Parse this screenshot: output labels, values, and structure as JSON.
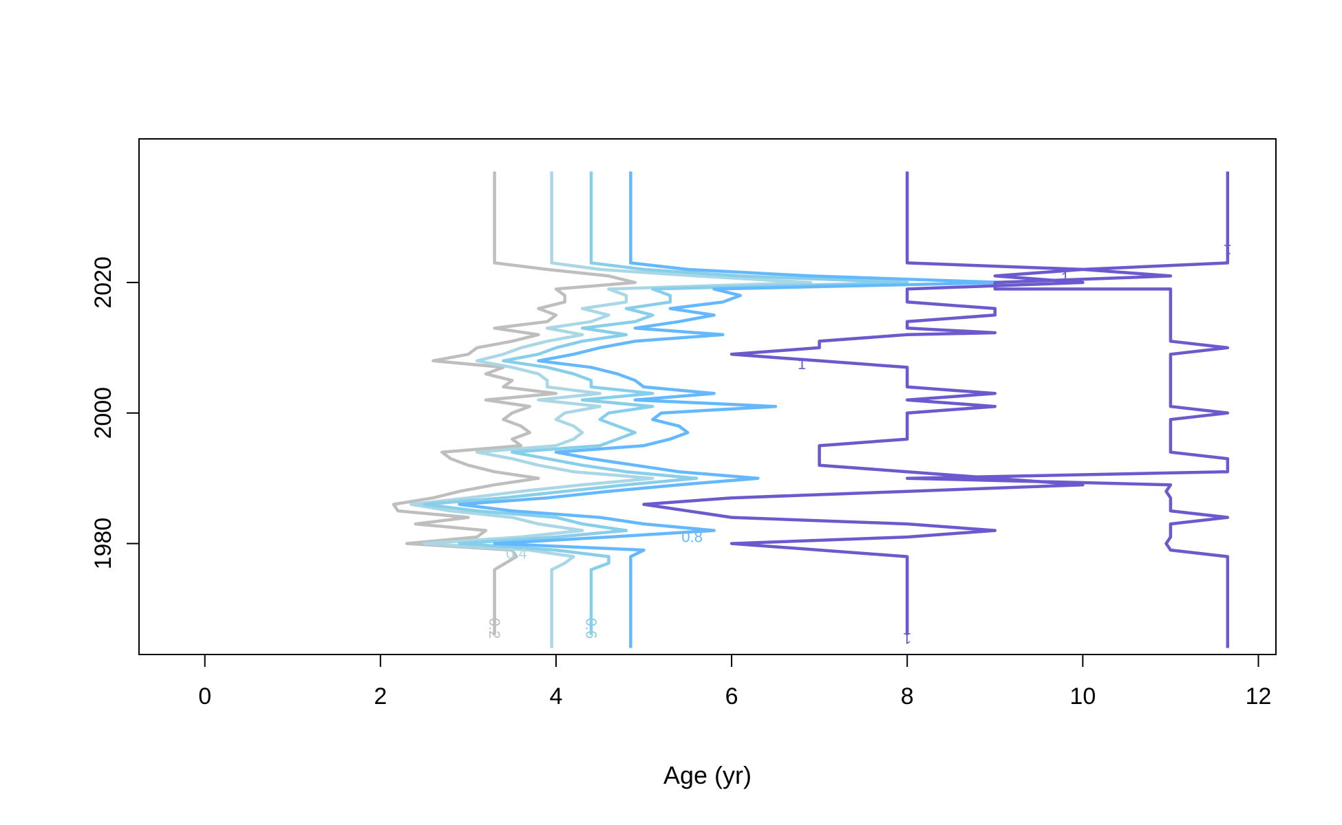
{
  "chart_data": {
    "type": "line",
    "subtype": "contour",
    "title": "",
    "xlabel": "Age (yr)",
    "ylabel": "",
    "xlim": [
      -0.75,
      12.2
    ],
    "ylim": [
      1963,
      2042
    ],
    "x_ticks": [
      0,
      2,
      4,
      6,
      8,
      10,
      12
    ],
    "x_tick_labels": [
      "0",
      "2",
      "4",
      "6",
      "8",
      "10",
      "12"
    ],
    "y_ticks": [
      1980,
      2000,
      2020
    ],
    "y_tick_labels": [
      "1980",
      "2000",
      "2020"
    ],
    "grid": false,
    "legend": "none",
    "series": [
      {
        "label": "0.2",
        "label_x": 3.3,
        "label_y": 1967,
        "label_rot": 90,
        "color": "#bebebe",
        "points": [
          [
            3.3,
            1966
          ],
          [
            3.3,
            1976
          ],
          [
            3.55,
            1978
          ],
          [
            3.5,
            1979
          ],
          [
            2.3,
            1980
          ],
          [
            3.1,
            1981
          ],
          [
            3.2,
            1982
          ],
          [
            2.4,
            1983
          ],
          [
            3.0,
            1984
          ],
          [
            2.2,
            1985
          ],
          [
            2.15,
            1986
          ],
          [
            2.6,
            1987
          ],
          [
            2.9,
            1988
          ],
          [
            3.3,
            1989
          ],
          [
            3.8,
            1990
          ],
          [
            3.3,
            1991
          ],
          [
            3.0,
            1992
          ],
          [
            2.8,
            1993
          ],
          [
            2.7,
            1994
          ],
          [
            3.6,
            1995
          ],
          [
            3.5,
            1996
          ],
          [
            3.7,
            1997
          ],
          [
            3.6,
            1998
          ],
          [
            3.4,
            1999
          ],
          [
            3.5,
            2000
          ],
          [
            3.7,
            2001
          ],
          [
            3.2,
            2002
          ],
          [
            4.0,
            2003
          ],
          [
            3.4,
            2004
          ],
          [
            3.5,
            2005
          ],
          [
            3.2,
            2006
          ],
          [
            3.4,
            2007
          ],
          [
            2.6,
            2008
          ],
          [
            3.0,
            2009
          ],
          [
            3.1,
            2010
          ],
          [
            3.5,
            2011
          ],
          [
            3.8,
            2012
          ],
          [
            3.3,
            2013
          ],
          [
            3.9,
            2014
          ],
          [
            4.0,
            2015
          ],
          [
            3.8,
            2016
          ],
          [
            4.1,
            2017
          ],
          [
            4.1,
            2018
          ],
          [
            4.0,
            2019
          ],
          [
            4.9,
            2020
          ],
          [
            4.6,
            2021
          ],
          [
            3.9,
            2022
          ],
          [
            3.3,
            2023
          ],
          [
            3.3,
            2037
          ]
        ]
      },
      {
        "label": "0.4",
        "label_x": 3.55,
        "label_y": 1978.5,
        "label_rot": 0,
        "color": "#a9d7e6",
        "points": [
          [
            3.95,
            1964
          ],
          [
            3.95,
            1976
          ],
          [
            4.1,
            1977
          ],
          [
            4.2,
            1978
          ],
          [
            3.7,
            1979
          ],
          [
            2.5,
            1980
          ],
          [
            3.6,
            1981
          ],
          [
            4.3,
            1982
          ],
          [
            3.8,
            1983
          ],
          [
            3.5,
            1984
          ],
          [
            2.8,
            1985
          ],
          [
            2.35,
            1986
          ],
          [
            3.0,
            1987
          ],
          [
            3.6,
            1988
          ],
          [
            4.3,
            1989
          ],
          [
            5.1,
            1990
          ],
          [
            4.2,
            1991
          ],
          [
            3.8,
            1992
          ],
          [
            3.5,
            1993
          ],
          [
            3.1,
            1994
          ],
          [
            4.0,
            1995
          ],
          [
            4.2,
            1996
          ],
          [
            4.3,
            1997
          ],
          [
            4.2,
            1998
          ],
          [
            4.0,
            1999
          ],
          [
            4.1,
            2000
          ],
          [
            4.5,
            2001
          ],
          [
            3.8,
            2002
          ],
          [
            4.5,
            2003
          ],
          [
            3.9,
            2004
          ],
          [
            3.9,
            2005
          ],
          [
            3.8,
            2006
          ],
          [
            3.5,
            2007
          ],
          [
            3.1,
            2008
          ],
          [
            3.4,
            2009
          ],
          [
            3.6,
            2010
          ],
          [
            3.9,
            2011
          ],
          [
            4.3,
            2012
          ],
          [
            3.9,
            2013
          ],
          [
            4.4,
            2014
          ],
          [
            4.6,
            2015
          ],
          [
            4.3,
            2016
          ],
          [
            4.8,
            2017
          ],
          [
            4.8,
            2018
          ],
          [
            4.6,
            2019
          ],
          [
            6.9,
            2020
          ],
          [
            5.6,
            2021
          ],
          [
            4.5,
            2022
          ],
          [
            3.95,
            2023
          ],
          [
            3.95,
            2037
          ]
        ]
      },
      {
        "label": "0.6",
        "label_x": 4.4,
        "label_y": 1967,
        "label_rot": 90,
        "color": "#87ceeb",
        "points": [
          [
            4.4,
            1966
          ],
          [
            4.4,
            1976
          ],
          [
            4.6,
            1977
          ],
          [
            4.6,
            1978
          ],
          [
            4.0,
            1979
          ],
          [
            2.9,
            1980
          ],
          [
            4.0,
            1981
          ],
          [
            4.8,
            1982
          ],
          [
            4.3,
            1983
          ],
          [
            4.0,
            1984
          ],
          [
            3.1,
            1985
          ],
          [
            2.5,
            1986
          ],
          [
            3.4,
            1987
          ],
          [
            4.1,
            1988
          ],
          [
            4.8,
            1989
          ],
          [
            5.6,
            1990
          ],
          [
            4.8,
            1991
          ],
          [
            4.3,
            1992
          ],
          [
            3.9,
            1993
          ],
          [
            3.5,
            1994
          ],
          [
            4.5,
            1995
          ],
          [
            4.7,
            1996
          ],
          [
            4.9,
            1997
          ],
          [
            4.7,
            1998
          ],
          [
            4.5,
            1999
          ],
          [
            4.6,
            2000
          ],
          [
            5.1,
            2001
          ],
          [
            4.3,
            2002
          ],
          [
            5.1,
            2003
          ],
          [
            4.4,
            2004
          ],
          [
            4.4,
            2005
          ],
          [
            4.2,
            2006
          ],
          [
            3.9,
            2007
          ],
          [
            3.4,
            2008
          ],
          [
            3.8,
            2009
          ],
          [
            4.0,
            2010
          ],
          [
            4.3,
            2011
          ],
          [
            4.8,
            2012
          ],
          [
            4.3,
            2013
          ],
          [
            4.9,
            2014
          ],
          [
            5.1,
            2015
          ],
          [
            4.8,
            2016
          ],
          [
            5.3,
            2017
          ],
          [
            5.3,
            2018
          ],
          [
            5.1,
            2019
          ],
          [
            8.0,
            2020
          ],
          [
            6.1,
            2021
          ],
          [
            5.0,
            2022
          ],
          [
            4.4,
            2023
          ],
          [
            4.4,
            2037
          ]
        ]
      },
      {
        "label": "0.8",
        "label_x": 5.55,
        "label_y": 1981,
        "label_rot": 0,
        "color": "#63b8ff",
        "points": [
          [
            4.85,
            1964
          ],
          [
            4.85,
            1978
          ],
          [
            5.0,
            1979
          ],
          [
            3.3,
            1980
          ],
          [
            4.6,
            1981
          ],
          [
            5.8,
            1982
          ],
          [
            5.0,
            1983
          ],
          [
            4.5,
            1984
          ],
          [
            3.5,
            1985
          ],
          [
            2.9,
            1986
          ],
          [
            3.9,
            1987
          ],
          [
            4.6,
            1988
          ],
          [
            5.4,
            1989
          ],
          [
            6.3,
            1990
          ],
          [
            5.4,
            1991
          ],
          [
            4.9,
            1992
          ],
          [
            4.4,
            1993
          ],
          [
            4.0,
            1994
          ],
          [
            5.0,
            1995
          ],
          [
            5.3,
            1996
          ],
          [
            5.5,
            1997
          ],
          [
            5.4,
            1998
          ],
          [
            5.1,
            1999
          ],
          [
            5.2,
            2000
          ],
          [
            6.5,
            2001
          ],
          [
            4.9,
            2002
          ],
          [
            5.8,
            2003
          ],
          [
            5.0,
            2004
          ],
          [
            4.9,
            2005
          ],
          [
            4.7,
            2006
          ],
          [
            4.4,
            2007
          ],
          [
            3.8,
            2008
          ],
          [
            4.2,
            2009
          ],
          [
            4.5,
            2010
          ],
          [
            4.9,
            2011
          ],
          [
            5.9,
            2012
          ],
          [
            4.9,
            2013
          ],
          [
            5.4,
            2014
          ],
          [
            5.8,
            2015
          ],
          [
            5.3,
            2016
          ],
          [
            5.9,
            2017
          ],
          [
            6.1,
            2018
          ],
          [
            5.8,
            2019
          ],
          [
            9.1,
            2020
          ],
          [
            6.9,
            2021
          ],
          [
            5.5,
            2022
          ],
          [
            4.85,
            2023
          ],
          [
            4.85,
            2037
          ]
        ]
      },
      {
        "label": "1",
        "label_x": 8.0,
        "label_y": 1965.5,
        "label_rot": 180,
        "color": "#6a5acd",
        "points": [
          [
            8.0,
            1966
          ],
          [
            8.0,
            1978
          ],
          [
            6.0,
            1980
          ],
          [
            8.0,
            1981
          ],
          [
            9.0,
            1982
          ],
          [
            8.0,
            1983
          ],
          [
            6.0,
            1984
          ],
          [
            5.0,
            1986
          ],
          [
            6.0,
            1987
          ],
          [
            8.0,
            1988
          ],
          [
            10.0,
            1989
          ],
          [
            9.0,
            1990
          ],
          [
            8.0,
            1991
          ],
          [
            7.0,
            1992
          ],
          [
            7.0,
            1995
          ],
          [
            8.0,
            1996
          ],
          [
            8.0,
            1998
          ],
          [
            8.0,
            2000
          ],
          [
            9.0,
            2001
          ],
          [
            8.0,
            2002
          ],
          [
            9.0,
            2003
          ],
          [
            8.0,
            2004
          ],
          [
            8.0,
            2007
          ],
          [
            7.0,
            2008
          ],
          [
            6.0,
            2009
          ],
          [
            7.0,
            2010
          ],
          [
            7.0,
            2011
          ],
          [
            8.0,
            2012
          ],
          [
            9.0,
            2012.3
          ],
          [
            8.0,
            2013
          ],
          [
            8.0,
            2014
          ],
          [
            9.0,
            2015
          ],
          [
            9.0,
            2016
          ],
          [
            8.0,
            2017
          ],
          [
            8.0,
            2019
          ],
          [
            10.0,
            2020
          ],
          [
            9.0,
            2021
          ],
          [
            10.0,
            2022
          ],
          [
            8.0,
            2023
          ],
          [
            8.0,
            2037
          ]
        ]
      },
      {
        "label": "1",
        "label_x": 11.65,
        "label_y": 2025,
        "label_rot": 180,
        "color": "#6a5acd",
        "points": [
          [
            11.65,
            1964
          ],
          [
            11.65,
            1978
          ],
          [
            11.0,
            1979
          ],
          [
            10.95,
            1980
          ],
          [
            11.0,
            1981
          ],
          [
            11.0,
            1983
          ],
          [
            11.65,
            1984
          ],
          [
            11.0,
            1985
          ],
          [
            11.0,
            1987
          ],
          [
            10.95,
            1988
          ],
          [
            11.0,
            1989
          ],
          [
            8.0,
            1990
          ],
          [
            11.65,
            1991
          ],
          [
            11.65,
            1993
          ],
          [
            11.0,
            1994
          ],
          [
            11.0,
            1998
          ],
          [
            11.0,
            1999
          ],
          [
            11.65,
            2000
          ],
          [
            11.0,
            2001
          ],
          [
            11.0,
            2005
          ],
          [
            11.0,
            2009
          ],
          [
            11.65,
            2010
          ],
          [
            11.0,
            2011
          ],
          [
            11.0,
            2019
          ],
          [
            9.0,
            2019
          ],
          [
            9.0,
            2020
          ],
          [
            11.0,
            2021
          ],
          [
            10.0,
            2022
          ],
          [
            11.65,
            2023
          ],
          [
            11.65,
            2037
          ]
        ]
      },
      {
        "label": "1",
        "label_x": 9.8,
        "label_y": 2020.7,
        "label_rot": 0,
        "color": "#6a5acd",
        "points": []
      },
      {
        "label": "1",
        "label_x": 6.8,
        "label_y": 2007.5,
        "label_rot": 0,
        "color": "#6a5acd",
        "points": []
      }
    ]
  }
}
